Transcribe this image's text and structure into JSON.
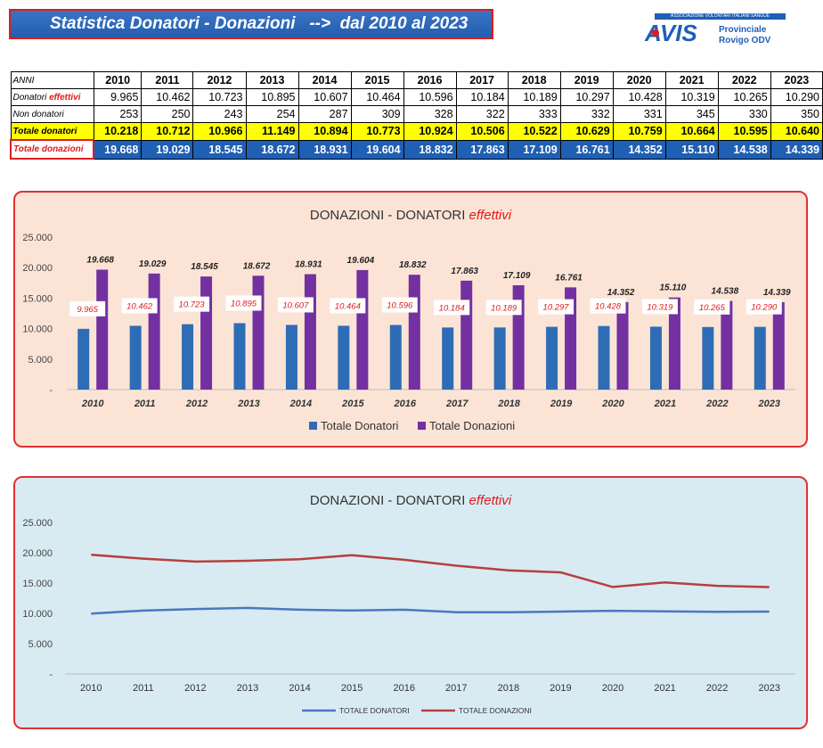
{
  "header": {
    "title": "Statistica Donatori - Donazioni   -->  dal 2010 al 2023",
    "logo_text": "AVIS",
    "logo_strip": "ASSOCIAZIONE VOLONTARI ITALIANI SANGUE",
    "logo_sub1": "Provinciale",
    "logo_sub2": "Rovigo ODV"
  },
  "table": {
    "header_label": "ANNI",
    "years": [
      "2010",
      "2011",
      "2012",
      "2013",
      "2014",
      "2015",
      "2016",
      "2017",
      "2018",
      "2019",
      "2020",
      "2021",
      "2022",
      "2023"
    ],
    "rows": [
      {
        "label": "Donatori ",
        "label_em": "effettivi",
        "style": "normal",
        "values": [
          "9.965",
          "10.462",
          "10.723",
          "10.895",
          "10.607",
          "10.464",
          "10.596",
          "10.184",
          "10.189",
          "10.297",
          "10.428",
          "10.319",
          "10.265",
          "10.290"
        ]
      },
      {
        "label": "Non donatori",
        "label_em": "",
        "style": "normal",
        "values": [
          "253",
          "250",
          "243",
          "254",
          "287",
          "309",
          "328",
          "322",
          "333",
          "332",
          "331",
          "345",
          "330",
          "350"
        ]
      },
      {
        "label": "Totale  donatori",
        "label_em": "",
        "style": "tot",
        "values": [
          "10.218",
          "10.712",
          "10.966",
          "11.149",
          "10.894",
          "10.773",
          "10.924",
          "10.506",
          "10.522",
          "10.629",
          "10.759",
          "10.664",
          "10.595",
          "10.640"
        ]
      },
      {
        "label": "Totale  donazioni",
        "label_em": "",
        "style": "don",
        "values": [
          "19.668",
          "19.029",
          "18.545",
          "18.672",
          "18.931",
          "19.604",
          "18.832",
          "17.863",
          "17.109",
          "16.761",
          "14.352",
          "15.110",
          "14.538",
          "14.339"
        ]
      }
    ]
  },
  "chart_data": [
    {
      "type": "bar",
      "title": "DONAZIONI - DONATORI ",
      "title_em": "effettivi",
      "categories": [
        "2010",
        "2011",
        "2012",
        "2013",
        "2014",
        "2015",
        "2016",
        "2017",
        "2018",
        "2019",
        "2020",
        "2021",
        "2022",
        "2023"
      ],
      "series": [
        {
          "name": "Totale Donatori",
          "color": "#2e6db5",
          "values": [
            9965,
            10462,
            10723,
            10895,
            10607,
            10464,
            10596,
            10184,
            10189,
            10297,
            10428,
            10319,
            10265,
            10290
          ],
          "labels": [
            "9.965",
            "10.462",
            "10.723",
            "10.895",
            "10.607",
            "10.464",
            "10.596",
            "10.184",
            "10.189",
            "10.297",
            "10.428",
            "10.319",
            "10.265",
            "10.290"
          ]
        },
        {
          "name": "Totale Donazioni",
          "color": "#7230a0",
          "values": [
            19668,
            19029,
            18545,
            18672,
            18931,
            19604,
            18832,
            17863,
            17109,
            16761,
            14352,
            15110,
            14538,
            14339
          ],
          "labels": [
            "19.668",
            "19.029",
            "18.545",
            "18.672",
            "18.931",
            "19.604",
            "18.832",
            "17.863",
            "17.109",
            "16.761",
            "14.352",
            "15.110",
            "14.538",
            "14.339"
          ]
        }
      ],
      "ylim": [
        0,
        25000
      ],
      "yticks": [
        "-",
        "5.000",
        "10.000",
        "15.000",
        "20.000",
        "25.000"
      ],
      "legend": "bottom",
      "grid": false
    },
    {
      "type": "line",
      "title": "DONAZIONI - DONATORI  ",
      "title_em": "effettivi",
      "categories": [
        "2010",
        "2011",
        "2012",
        "2013",
        "2014",
        "2015",
        "2016",
        "2017",
        "2018",
        "2019",
        "2020",
        "2021",
        "2022",
        "2023"
      ],
      "series": [
        {
          "name": "TOTALE DONATORI",
          "color": "#4a78c0",
          "values": [
            9965,
            10462,
            10723,
            10895,
            10607,
            10464,
            10596,
            10184,
            10189,
            10297,
            10428,
            10319,
            10265,
            10290
          ]
        },
        {
          "name": "TOTALE DONAZIONI",
          "color": "#b5403d",
          "values": [
            19668,
            19029,
            18545,
            18672,
            18931,
            19604,
            18832,
            17863,
            17109,
            16761,
            14352,
            15110,
            14538,
            14339
          ]
        }
      ],
      "ylim": [
        0,
        25000
      ],
      "yticks": [
        "-",
        "5.000",
        "10.000",
        "15.000",
        "20.000",
        "25.000"
      ],
      "legend": "bottom",
      "grid": false
    }
  ]
}
